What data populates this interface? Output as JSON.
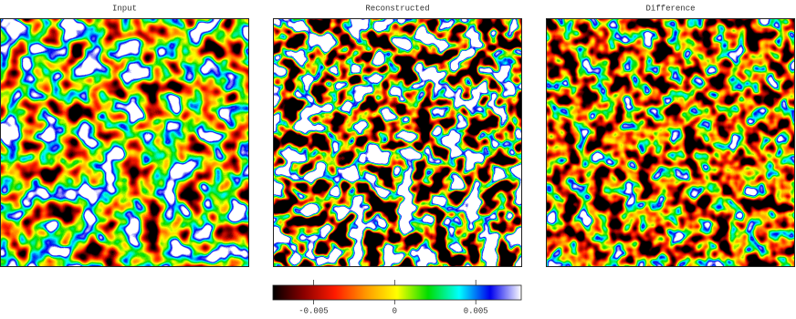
{
  "chart_data": {
    "type": "heatmap",
    "panels": [
      {
        "title": "Input"
      },
      {
        "title": "Reconstructed"
      },
      {
        "title": "Difference"
      }
    ],
    "colorbar": {
      "lim": [
        -0.0075,
        0.0078
      ],
      "ticks": [
        -0.005,
        0,
        0.005
      ],
      "colors": [
        "#000000",
        "#8b0000",
        "#ff1a00",
        "#ff9900",
        "#ffff00",
        "#00dd00",
        "#00ffff",
        "#0000ee",
        "#ffffff"
      ]
    }
  }
}
